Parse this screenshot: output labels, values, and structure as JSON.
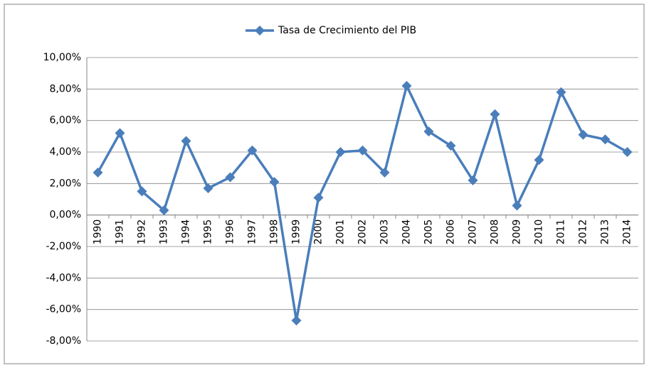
{
  "chart_data": {
    "type": "line",
    "categories": [
      "1990",
      "1991",
      "1992",
      "1993",
      "1994",
      "1995",
      "1996",
      "1997",
      "1998",
      "1999",
      "2000",
      "2001",
      "2002",
      "2003",
      "2004",
      "2005",
      "2006",
      "2007",
      "2008",
      "2009",
      "2010",
      "2011",
      "2012",
      "2013",
      "2014"
    ],
    "series": [
      {
        "name": "Tasa de Crecimiento del PIB",
        "color": "#4a7ebb",
        "values": [
          2.7,
          5.2,
          1.5,
          0.3,
          4.7,
          1.7,
          2.4,
          4.1,
          2.1,
          -6.7,
          1.1,
          4.0,
          4.1,
          2.7,
          8.2,
          5.3,
          4.4,
          2.2,
          6.4,
          0.6,
          3.5,
          7.8,
          5.1,
          4.8,
          4.0
        ]
      }
    ],
    "ylim": [
      -8,
      10
    ],
    "yticks": [
      {
        "value": -8,
        "label": "-8,00%"
      },
      {
        "value": -6,
        "label": "-6,00%"
      },
      {
        "value": -4,
        "label": "-4,00%"
      },
      {
        "value": -2,
        "label": "-2,00%"
      },
      {
        "value": 0,
        "label": "0,00%"
      },
      {
        "value": 2,
        "label": "2,00%"
      },
      {
        "value": 4,
        "label": "4,00%"
      },
      {
        "value": 6,
        "label": "6,00%"
      },
      {
        "value": 8,
        "label": "8,00%"
      },
      {
        "value": 10,
        "label": "10,00%"
      }
    ],
    "grid": true,
    "legend": "top"
  }
}
